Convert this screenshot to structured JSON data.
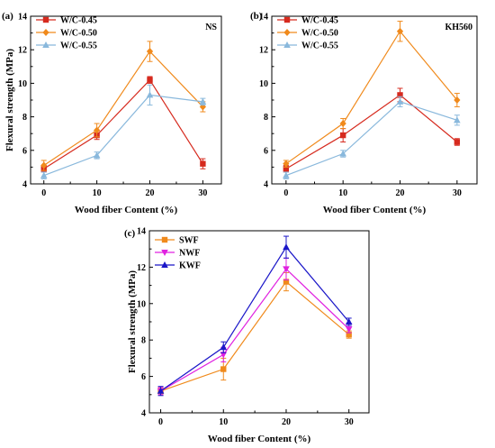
{
  "chart_data": [
    {
      "type": "line",
      "panel_label": "(a)",
      "corner_label": "NS",
      "xlabel": "Wood fiber Content (%)",
      "ylabel": "Flexural strength (MPa)",
      "x": [
        0,
        10,
        20,
        30
      ],
      "xticks": [
        0,
        10,
        20,
        30
      ],
      "ylim": [
        4,
        14
      ],
      "yticks": [
        4,
        6,
        8,
        10,
        12,
        14
      ],
      "legend_position": "top-left",
      "series": [
        {
          "name": "W/C-0.45",
          "color": "#d62a1e",
          "marker": "square",
          "values": [
            4.9,
            6.9,
            10.2,
            5.2
          ],
          "errors": [
            0.2,
            0.25,
            0.2,
            0.3
          ]
        },
        {
          "name": "W/C-0.50",
          "color": "#f08a1c",
          "marker": "diamond",
          "values": [
            5.1,
            7.2,
            11.9,
            8.6
          ],
          "errors": [
            0.3,
            0.4,
            0.6,
            0.3
          ]
        },
        {
          "name": "W/C-0.55",
          "color": "#89b8dc",
          "marker": "triangle",
          "values": [
            4.5,
            5.7,
            9.3,
            8.9
          ],
          "errors": [
            0.2,
            0.2,
            0.6,
            0.2
          ]
        }
      ]
    },
    {
      "type": "line",
      "panel_label": "(b)",
      "corner_label": "KH560",
      "xlabel": "Wood fiber Content (%)",
      "ylabel": "",
      "x": [
        0,
        10,
        20,
        30
      ],
      "xticks": [
        0,
        10,
        20,
        30
      ],
      "ylim": [
        4,
        14
      ],
      "yticks": [
        4,
        6,
        8,
        10,
        12,
        14
      ],
      "legend_position": "top-left",
      "series": [
        {
          "name": "W/C-0.45",
          "color": "#d62a1e",
          "marker": "square",
          "values": [
            4.9,
            6.9,
            9.3,
            6.5
          ],
          "errors": [
            0.2,
            0.4,
            0.4,
            0.2
          ]
        },
        {
          "name": "W/C-0.50",
          "color": "#f08a1c",
          "marker": "diamond",
          "values": [
            5.2,
            7.6,
            13.1,
            9.0
          ],
          "errors": [
            0.2,
            0.3,
            0.6,
            0.4
          ]
        },
        {
          "name": "W/C-0.55",
          "color": "#89b8dc",
          "marker": "triangle",
          "values": [
            4.5,
            5.8,
            8.9,
            7.8
          ],
          "errors": [
            0.2,
            0.2,
            0.3,
            0.3
          ]
        }
      ]
    },
    {
      "type": "line",
      "panel_label": "(c)",
      "corner_label": "",
      "xlabel": "Wood fiber Content (%)",
      "ylabel": "Flexural strength (MPa)",
      "x": [
        0,
        10,
        20,
        30
      ],
      "xticks": [
        0,
        10,
        20,
        30
      ],
      "ylim": [
        4,
        14
      ],
      "yticks": [
        4,
        6,
        8,
        10,
        12,
        14
      ],
      "legend_position": "top-left",
      "series": [
        {
          "name": "SWF",
          "color": "#f08a1c",
          "marker": "square",
          "values": [
            5.2,
            6.4,
            11.2,
            8.3
          ],
          "errors": [
            0.2,
            0.6,
            0.5,
            0.2
          ]
        },
        {
          "name": "NWF",
          "color": "#e020e0",
          "marker": "triangle-down",
          "values": [
            5.2,
            7.2,
            11.9,
            8.6
          ],
          "errors": [
            0.2,
            0.4,
            0.6,
            0.2
          ]
        },
        {
          "name": "KWF",
          "color": "#1a16c8",
          "marker": "triangle",
          "values": [
            5.2,
            7.6,
            13.1,
            9.0
          ],
          "errors": [
            0.25,
            0.3,
            0.6,
            0.2
          ]
        }
      ]
    }
  ]
}
